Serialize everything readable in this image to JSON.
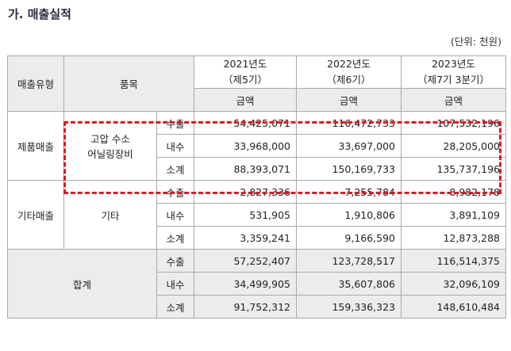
{
  "title": "가. 매출실적",
  "unit": "(단위: 천원)",
  "header": {
    "type": "매출유형",
    "item": "품목",
    "years": [
      {
        "line1": "2021년도",
        "line2": "（제5기）"
      },
      {
        "line1": "2022년도",
        "line2": "（제6기）"
      },
      {
        "line1": "2023년도",
        "line2": "（제7기 3분기）"
      }
    ],
    "amount_label": "금액"
  },
  "groups": [
    {
      "type": "제품매출",
      "item_line1": "고압 수소",
      "item_line2": "어닐링장비",
      "rows": [
        {
          "kind": "수출",
          "values": [
            "54,425,071",
            "116,472,733",
            "107,532,196"
          ]
        },
        {
          "kind": "내수",
          "values": [
            "33,968,000",
            "33,697,000",
            "28,205,000"
          ]
        },
        {
          "kind": "소계",
          "values": [
            "88,393,071",
            "150,169,733",
            "135,737,196"
          ]
        }
      ]
    },
    {
      "type": "기타매출",
      "item_line1": "기타",
      "rows": [
        {
          "kind": "수출",
          "values": [
            "2,827,336",
            "7,255,784",
            "8,982,178"
          ]
        },
        {
          "kind": "내수",
          "values": [
            "531,905",
            "1,910,806",
            "3,891,109"
          ]
        },
        {
          "kind": "소계",
          "values": [
            "3,359,241",
            "9,166,590",
            "12,873,288"
          ]
        }
      ]
    },
    {
      "type": "합계",
      "rows": [
        {
          "kind": "수출",
          "values": [
            "57,252,407",
            "123,728,517",
            "116,514,375"
          ]
        },
        {
          "kind": "내수",
          "values": [
            "34,499,905",
            "35,607,806",
            "32,096,109"
          ]
        },
        {
          "kind": "소계",
          "values": [
            "91,752,312",
            "159,336,323",
            "148,610,484"
          ]
        }
      ]
    }
  ],
  "highlight_color": "#e8141c"
}
